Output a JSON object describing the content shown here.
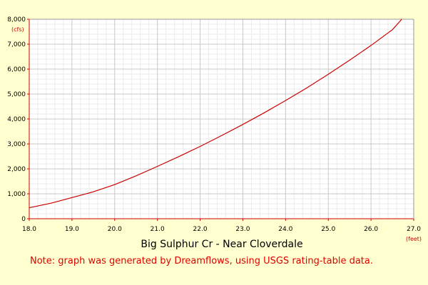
{
  "chart_data": {
    "type": "line",
    "title": "Big Sulphur Cr - Near Cloverdale",
    "xlabel": "(feet)",
    "ylabel": "(cfs)",
    "xlim": [
      18.0,
      27.0
    ],
    "ylim": [
      0,
      8000
    ],
    "x_ticks": [
      "18.0",
      "19.0",
      "20.0",
      "21.0",
      "22.0",
      "23.0",
      "24.0",
      "25.0",
      "26.0",
      "27.0"
    ],
    "y_ticks": [
      "0",
      "1,000",
      "2,000",
      "3,000",
      "4,000",
      "5,000",
      "6,000",
      "7,000",
      "8,000"
    ],
    "grid": true,
    "series": [
      {
        "color": "#cc0000",
        "x": [
          18.0,
          18.5,
          19.0,
          19.5,
          20.0,
          20.5,
          21.0,
          21.5,
          22.0,
          22.5,
          23.0,
          23.5,
          24.0,
          24.5,
          25.0,
          25.5,
          26.0,
          26.5,
          26.72
        ],
        "y": [
          440,
          620,
          850,
          1080,
          1370,
          1720,
          2100,
          2490,
          2900,
          3330,
          3780,
          4250,
          4740,
          5250,
          5790,
          6360,
          6950,
          7580,
          8000
        ]
      }
    ]
  },
  "note": "Note: graph was generated by Dreamflows, using USGS rating-table data.",
  "colors": {
    "background": "#ffffd0",
    "plot_bg": "#ffffff",
    "axis": "#cc0000",
    "grid_major": "#c8c8c8",
    "grid_minor": "#ebebeb"
  }
}
